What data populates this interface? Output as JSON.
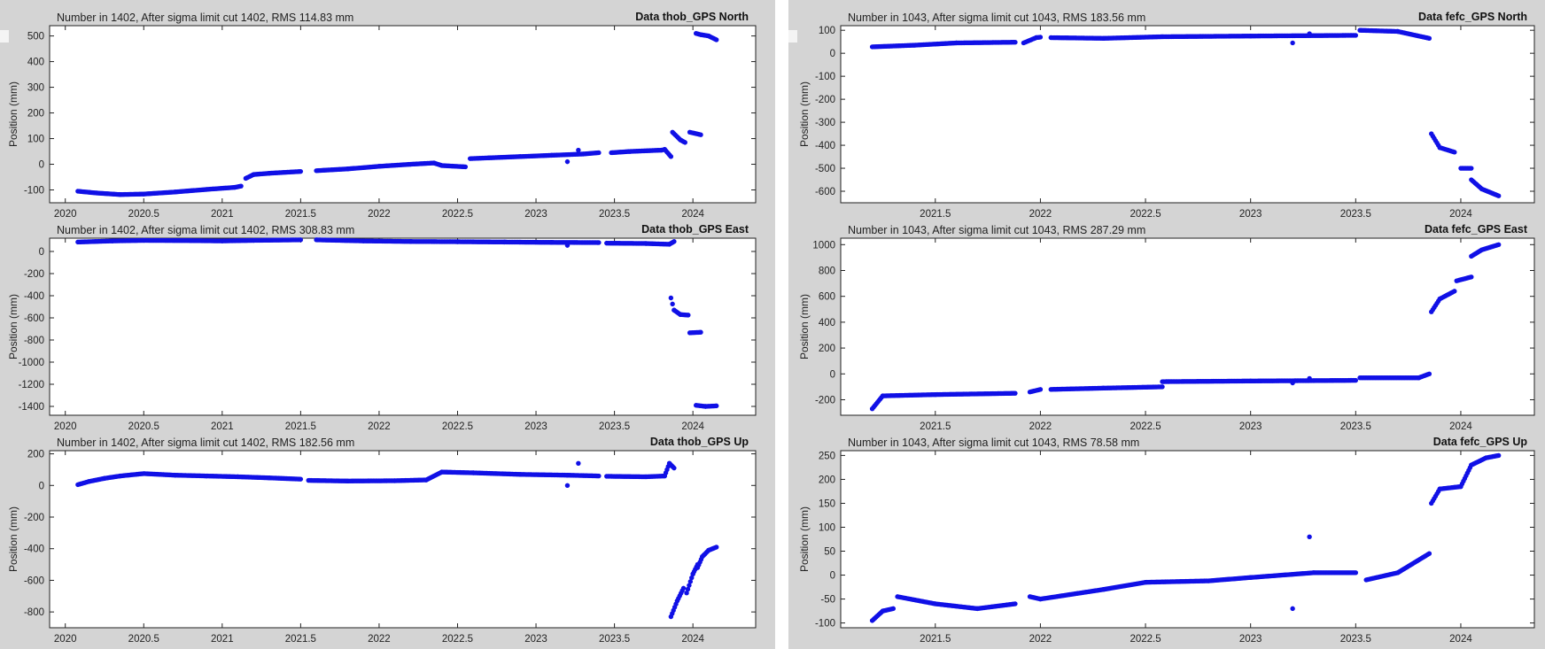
{
  "chart_data": [
    {
      "type": "scatter",
      "header": "Number in   1402, After sigma limit cut   1402, RMS 114.83 mm",
      "title": "Data thob_GPS North",
      "ylabel": "Position (mm)",
      "xlim": [
        2019.9,
        2024.4
      ],
      "ylim": [
        -150,
        540
      ],
      "xticks": [
        2020,
        2020.5,
        2021,
        2021.5,
        2022,
        2022.5,
        2023,
        2023.5,
        2024
      ],
      "xtick_labels": [
        "2020",
        "2020.5",
        "2021",
        "2021.5",
        "2022",
        "2022.5",
        "2023",
        "2023.5",
        "2024"
      ],
      "yticks": [
        -100,
        0,
        100,
        200,
        300,
        400,
        500
      ],
      "marker_color": "#1010e6",
      "segments": [
        {
          "x": [
            2020.08,
            2020.2,
            2020.35,
            2020.5,
            2020.7,
            2020.9,
            2021.08,
            2021.12
          ],
          "y": [
            -105,
            -112,
            -118,
            -116,
            -108,
            -98,
            -90,
            -85
          ]
        },
        {
          "x": [
            2021.15,
            2021.2,
            2021.3,
            2021.5
          ],
          "y": [
            -55,
            -40,
            -35,
            -28
          ]
        },
        {
          "x": [
            2021.6,
            2021.8,
            2022.0,
            2022.2,
            2022.35,
            2022.4,
            2022.55
          ],
          "y": [
            -25,
            -18,
            -8,
            0,
            5,
            -5,
            -10
          ]
        },
        {
          "x": [
            2022.58,
            2022.7,
            2022.9,
            2023.1,
            2023.3,
            2023.4
          ],
          "y": [
            22,
            25,
            30,
            35,
            40,
            45
          ]
        },
        {
          "x": [
            2023.48,
            2023.6,
            2023.8,
            2023.82,
            2023.86
          ],
          "y": [
            45,
            50,
            55,
            58,
            30
          ]
        },
        {
          "x": [
            2023.87,
            2023.92,
            2023.95
          ],
          "y": [
            125,
            95,
            85
          ]
        },
        {
          "x": [
            2023.98,
            2024.05
          ],
          "y": [
            125,
            115
          ]
        },
        {
          "x": [
            2024.02,
            2024.05,
            2024.1,
            2024.15
          ],
          "y": [
            510,
            505,
            500,
            485
          ]
        }
      ],
      "outliers": {
        "x": [
          2023.2,
          2023.27
        ],
        "y": [
          10,
          55
        ]
      }
    },
    {
      "type": "scatter",
      "header": "Number in   1402, After sigma limit cut   1402, RMS 308.83 mm",
      "title": "Data thob_GPS East",
      "ylabel": "Position (mm)",
      "xlim": [
        2019.9,
        2024.4
      ],
      "ylim": [
        -1480,
        120
      ],
      "xticks": [
        2020,
        2020.5,
        2021,
        2021.5,
        2022,
        2022.5,
        2023,
        2023.5,
        2024
      ],
      "xtick_labels": [
        "2020",
        "2020.5",
        "2021",
        "2021.5",
        "2022",
        "2022.5",
        "2023",
        "2023.5",
        "2024"
      ],
      "yticks": [
        -1400,
        -1200,
        -1000,
        -800,
        -600,
        -400,
        -200,
        0
      ],
      "marker_color": "#1010e6",
      "segments": [
        {
          "x": [
            2020.08,
            2020.3,
            2020.5,
            2020.8,
            2021.0,
            2021.2,
            2021.5
          ],
          "y": [
            85,
            95,
            100,
            98,
            95,
            100,
            105
          ]
        },
        {
          "x": [
            2021.6,
            2021.9,
            2022.2,
            2022.5,
            2022.8,
            2023.1,
            2023.4
          ],
          "y": [
            105,
            95,
            90,
            88,
            85,
            82,
            80
          ]
        },
        {
          "x": [
            2023.45,
            2023.7,
            2023.85,
            2023.88
          ],
          "y": [
            75,
            72,
            65,
            90
          ]
        },
        {
          "x": [
            2023.86,
            2023.88,
            2023.92,
            2023.97
          ],
          "y": [
            -420,
            -530,
            -570,
            -575
          ]
        },
        {
          "x": [
            2023.98,
            2024.05
          ],
          "y": [
            -735,
            -730
          ]
        },
        {
          "x": [
            2024.02,
            2024.08,
            2024.15
          ],
          "y": [
            -1390,
            -1400,
            -1395
          ]
        }
      ],
      "outliers": {
        "x": [
          2023.2
        ],
        "y": [
          55
        ]
      }
    },
    {
      "type": "scatter",
      "header": "Number in   1402, After sigma limit cut   1402, RMS 182.56 mm",
      "title": "Data thob_GPS Up",
      "ylabel": "Position (mm)",
      "xlim": [
        2019.9,
        2024.4
      ],
      "ylim": [
        -900,
        220
      ],
      "xticks": [
        2020,
        2020.5,
        2021,
        2021.5,
        2022,
        2022.5,
        2023,
        2023.5,
        2024
      ],
      "xtick_labels": [
        "2020",
        "2020.5",
        "2021",
        "2021.5",
        "2022",
        "2022.5",
        "2023",
        "2023.5",
        "2024"
      ],
      "yticks": [
        -800,
        -600,
        -400,
        -200,
        0,
        200
      ],
      "marker_color": "#1010e6",
      "segments": [
        {
          "x": [
            2020.08,
            2020.15,
            2020.25,
            2020.35,
            2020.5,
            2020.7,
            2020.9,
            2021.1,
            2021.3,
            2021.5
          ],
          "y": [
            5,
            25,
            45,
            60,
            75,
            65,
            60,
            55,
            48,
            40
          ]
        },
        {
          "x": [
            2021.55,
            2021.8,
            2022.1,
            2022.3,
            2022.4,
            2022.6,
            2022.9,
            2023.2,
            2023.4
          ],
          "y": [
            32,
            28,
            30,
            35,
            85,
            80,
            70,
            65,
            60
          ]
        },
        {
          "x": [
            2023.45,
            2023.7,
            2023.82,
            2023.85,
            2023.88
          ],
          "y": [
            58,
            55,
            60,
            140,
            110
          ]
        },
        {
          "x": [
            2023.86,
            2023.9,
            2023.94
          ],
          "y": [
            -830,
            -730,
            -650
          ]
        },
        {
          "x": [
            2023.96,
            2024.0,
            2024.03
          ],
          "y": [
            -680,
            -560,
            -500
          ]
        },
        {
          "x": [
            2024.03,
            2024.06,
            2024.1,
            2024.15
          ],
          "y": [
            -520,
            -450,
            -410,
            -390
          ]
        }
      ],
      "outliers": {
        "x": [
          2023.2,
          2023.27
        ],
        "y": [
          0,
          140
        ]
      }
    },
    {
      "type": "scatter",
      "header": "Number in   1043, After sigma limit cut   1043, RMS 183.56 mm",
      "title": "Data fefc_GPS North",
      "ylabel": "Position (mm)",
      "xlim": [
        2021.05,
        2024.35
      ],
      "ylim": [
        -650,
        120
      ],
      "xticks": [
        2021.5,
        2022,
        2022.5,
        2023,
        2023.5,
        2024
      ],
      "xtick_labels": [
        "2021.5",
        "2022",
        "2022.5",
        "2023",
        "2023.5",
        "2024"
      ],
      "yticks": [
        -600,
        -500,
        -400,
        -300,
        -200,
        -100,
        0,
        100
      ],
      "marker_color": "#1010e6",
      "segments": [
        {
          "x": [
            2021.2,
            2021.4,
            2021.6,
            2021.88
          ],
          "y": [
            28,
            35,
            45,
            48
          ]
        },
        {
          "x": [
            2021.92,
            2021.98,
            2022.0
          ],
          "y": [
            45,
            68,
            70
          ]
        },
        {
          "x": [
            2022.05,
            2022.3,
            2022.58,
            2023.0,
            2023.5
          ],
          "y": [
            68,
            65,
            72,
            75,
            78
          ]
        },
        {
          "x": [
            2023.52,
            2023.7,
            2023.85
          ],
          "y": [
            100,
            95,
            65
          ]
        },
        {
          "x": [
            2023.86,
            2023.9,
            2023.97
          ],
          "y": [
            -350,
            -410,
            -430
          ]
        },
        {
          "x": [
            2024.0,
            2024.05
          ],
          "y": [
            -500,
            -500
          ]
        },
        {
          "x": [
            2024.05,
            2024.1,
            2024.18
          ],
          "y": [
            -550,
            -590,
            -620
          ]
        }
      ],
      "outliers": {
        "x": [
          2023.2,
          2023.28
        ],
        "y": [
          45,
          85
        ]
      }
    },
    {
      "type": "scatter",
      "header": "Number in   1043, After sigma limit cut   1043, RMS 287.29 mm",
      "title": "Data fefc_GPS East",
      "ylabel": "Position (mm)",
      "xlim": [
        2021.05,
        2024.35
      ],
      "ylim": [
        -320,
        1050
      ],
      "xticks": [
        2021.5,
        2022,
        2022.5,
        2023,
        2023.5,
        2024
      ],
      "xtick_labels": [
        "2021.5",
        "2022",
        "2022.5",
        "2023",
        "2023.5",
        "2024"
      ],
      "yticks": [
        -200,
        0,
        200,
        400,
        600,
        800,
        1000
      ],
      "marker_color": "#1010e6",
      "segments": [
        {
          "x": [
            2021.2,
            2021.25,
            2021.5,
            2021.88
          ],
          "y": [
            -270,
            -170,
            -160,
            -150
          ]
        },
        {
          "x": [
            2021.95,
            2022.0
          ],
          "y": [
            -140,
            -120
          ]
        },
        {
          "x": [
            2022.05,
            2022.3,
            2022.58
          ],
          "y": [
            -120,
            -110,
            -100
          ]
        },
        {
          "x": [
            2022.58,
            2023.0,
            2023.5
          ],
          "y": [
            -60,
            -55,
            -50
          ]
        },
        {
          "x": [
            2023.52,
            2023.8,
            2023.85
          ],
          "y": [
            -30,
            -30,
            0
          ]
        },
        {
          "x": [
            2023.86,
            2023.9,
            2023.97
          ],
          "y": [
            480,
            580,
            640
          ]
        },
        {
          "x": [
            2023.98,
            2024.05
          ],
          "y": [
            720,
            750
          ]
        },
        {
          "x": [
            2024.05,
            2024.1,
            2024.18
          ],
          "y": [
            910,
            960,
            1000
          ]
        }
      ],
      "outliers": {
        "x": [
          2023.2,
          2023.28
        ],
        "y": [
          -70,
          -35
        ]
      }
    },
    {
      "type": "scatter",
      "header": "Number in   1043, After sigma limit cut   1043, RMS  78.58 mm",
      "title": "Data fefc_GPS Up",
      "ylabel": "Position (mm)",
      "xlim": [
        2021.05,
        2024.35
      ],
      "ylim": [
        -110,
        260
      ],
      "xticks": [
        2021.5,
        2022,
        2022.5,
        2023,
        2023.5,
        2024
      ],
      "xtick_labels": [
        "2021.5",
        "2022",
        "2022.5",
        "2023",
        "2023.5",
        "2024"
      ],
      "yticks": [
        -100,
        -50,
        0,
        50,
        100,
        150,
        200,
        250
      ],
      "marker_color": "#1010e6",
      "segments": [
        {
          "x": [
            2021.2,
            2021.25,
            2021.3
          ],
          "y": [
            -95,
            -75,
            -70
          ]
        },
        {
          "x": [
            2021.32,
            2021.5,
            2021.7,
            2021.88
          ],
          "y": [
            -45,
            -60,
            -70,
            -60
          ]
        },
        {
          "x": [
            2021.95,
            2022.0,
            2022.3,
            2022.5,
            2022.8,
            2023.0,
            2023.3,
            2023.5
          ],
          "y": [
            -45,
            -50,
            -30,
            -15,
            -12,
            -5,
            5,
            5
          ]
        },
        {
          "x": [
            2023.55,
            2023.7,
            2023.85
          ],
          "y": [
            -10,
            5,
            45
          ]
        },
        {
          "x": [
            2023.86,
            2023.9,
            2024.0,
            2024.05,
            2024.12,
            2024.18
          ],
          "y": [
            150,
            180,
            185,
            230,
            245,
            250
          ]
        }
      ],
      "outliers": {
        "x": [
          2023.2,
          2023.28
        ],
        "y": [
          -70,
          80
        ]
      }
    }
  ]
}
